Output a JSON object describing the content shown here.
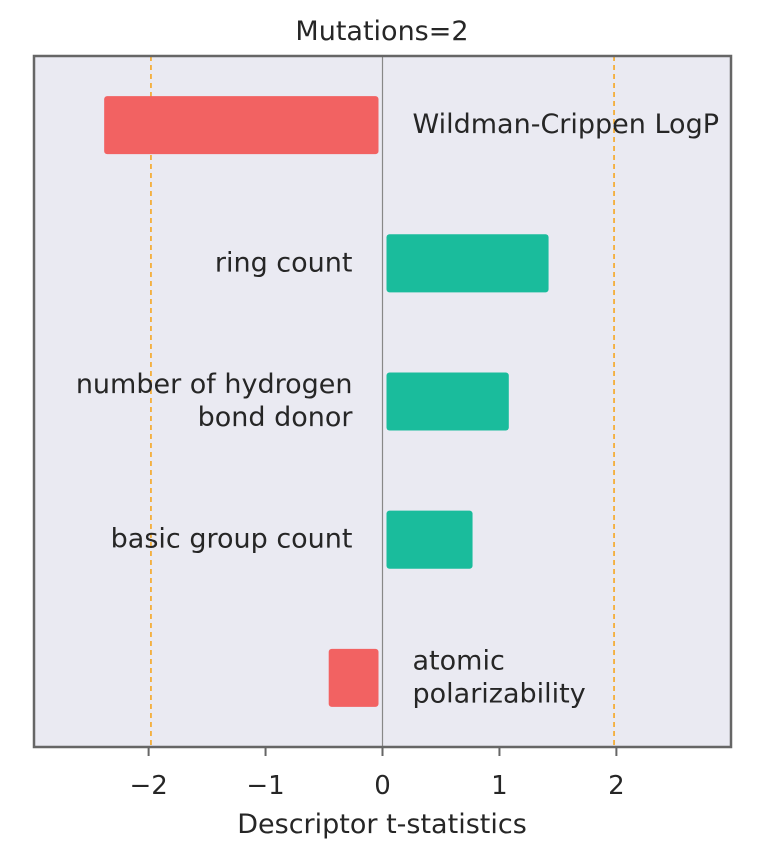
{
  "chart_data": {
    "type": "bar",
    "orientation": "horizontal",
    "title": "Mutations=2",
    "xlabel": "Descriptor t-statistics",
    "ylabel": "",
    "xlim": [
      -2.98,
      2.98
    ],
    "xticks": [
      -2,
      -1,
      0,
      1,
      2
    ],
    "xtick_labels": [
      "−2",
      "−1",
      "0",
      "1",
      "2"
    ],
    "grid": false,
    "legend": "none",
    "threshold_lines": [
      -1.98,
      1.98
    ],
    "categories": [
      "Wildman-Crippen LogP",
      "ring count",
      "number of hydrogen bond donor",
      "basic group count",
      "atomic polarizability"
    ],
    "category_lines": [
      [
        "Wildman-Crippen LogP"
      ],
      [
        "ring count"
      ],
      [
        "number of hydrogen",
        "bond donor"
      ],
      [
        "basic group count"
      ],
      [
        "atomic",
        "polarizability"
      ]
    ],
    "values": [
      -2.38,
      1.42,
      1.08,
      0.77,
      -0.46
    ],
    "colors": {
      "negative": "#f26262",
      "positive": "#1abc9c",
      "threshold": "#f5a623",
      "background": "#eaeaf2",
      "frame": "#666666",
      "zero_line": "#888888"
    }
  }
}
